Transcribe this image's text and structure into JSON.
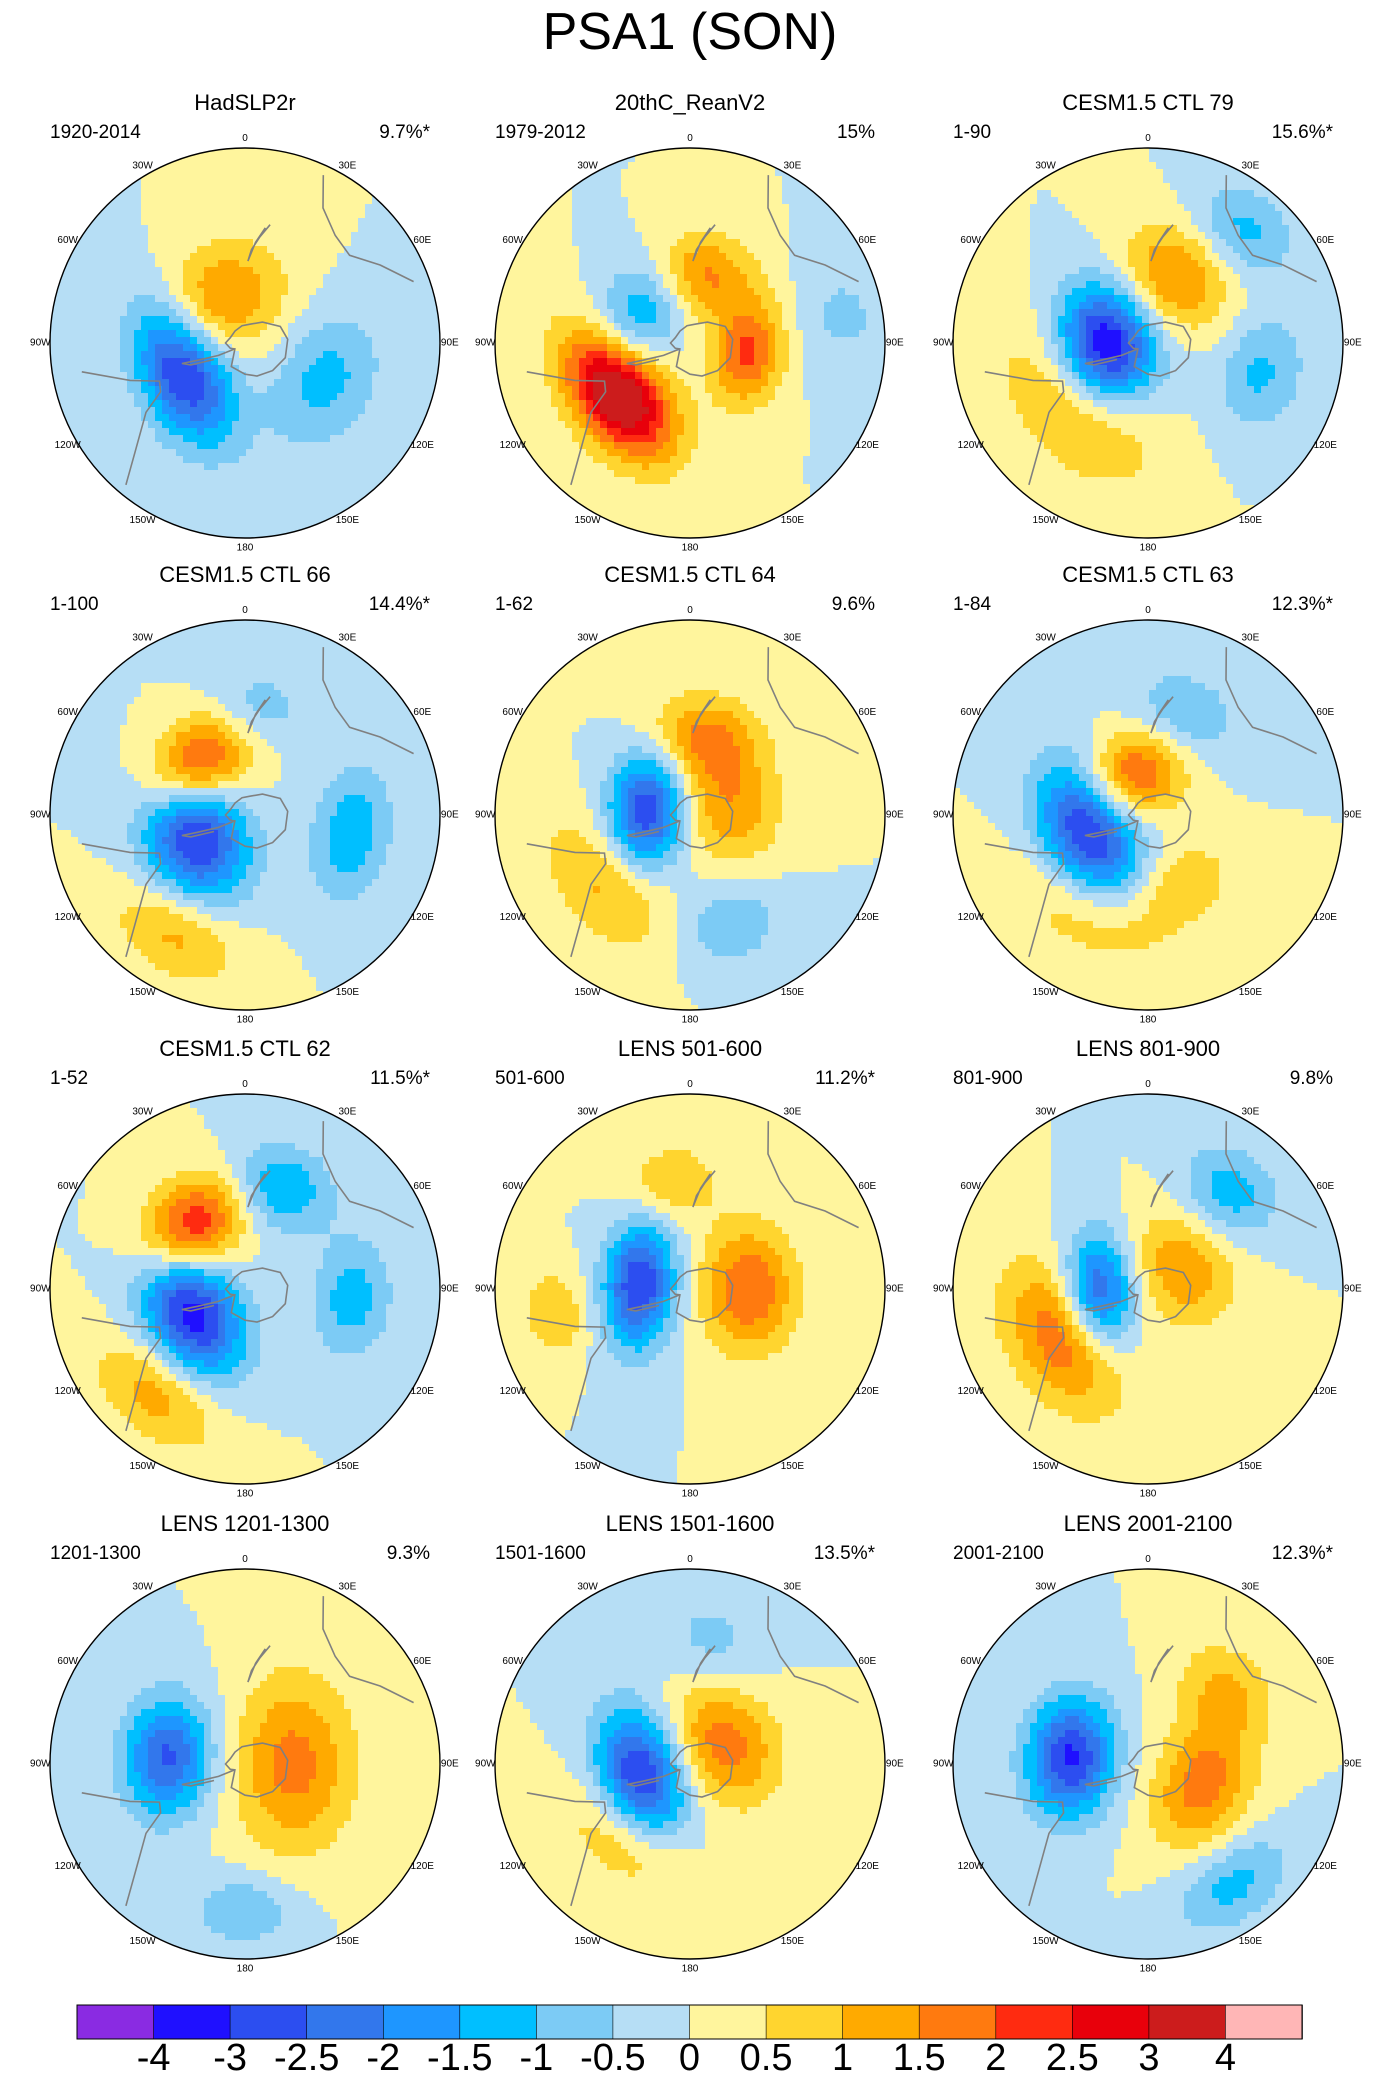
{
  "figure": {
    "title": "PSA1 (SON)"
  },
  "chart_data": {
    "type": "heatmap",
    "projection": "south-polar-stereographic",
    "title": "PSA1 (SON)",
    "longitude_labels": [
      "0",
      "30E",
      "60E",
      "90E",
      "120E",
      "150E",
      "180",
      "150W",
      "120W",
      "90W",
      "60W",
      "30W"
    ],
    "panels": [
      {
        "title": "HadSLP2r",
        "period": "1920-2014",
        "variance": "9.7%*",
        "centers": [
          {
            "lon": -115,
            "r": 0.35,
            "v": -3.2,
            "a": 0.38,
            "b": 0.22
          },
          {
            "lon": -30,
            "r": 0.25,
            "v": 1.6,
            "a": 0.34,
            "b": 0.28
          },
          {
            "lon": 115,
            "r": 0.45,
            "v": -1.2,
            "a": 0.36,
            "b": 0.26
          }
        ]
      },
      {
        "title": "20thC_ReanV2",
        "period": "1979-2012",
        "variance": "15%",
        "centers": [
          {
            "lon": -125,
            "r": 0.45,
            "v": 4.0,
            "a": 0.36,
            "b": 0.22
          },
          {
            "lon": -60,
            "r": 0.3,
            "v": -1.6,
            "a": 0.3,
            "b": 0.22
          },
          {
            "lon": 10,
            "r": 0.35,
            "v": 1.7,
            "a": 0.26,
            "b": 0.22
          },
          {
            "lon": 100,
            "r": 0.3,
            "v": 2.1,
            "a": 0.26,
            "b": 0.18
          },
          {
            "lon": 80,
            "r": 0.8,
            "v": -0.6,
            "a": 0.3,
            "b": 0.25
          }
        ]
      },
      {
        "title": "CESM1.5 CTL 79",
        "period": "1-90",
        "variance": "15.6%*",
        "centers": [
          {
            "lon": -95,
            "r": 0.22,
            "v": -4.0,
            "a": 0.32,
            "b": 0.26
          },
          {
            "lon": -130,
            "r": 0.45,
            "v": 1.6,
            "a": 0.45,
            "b": 0.3
          },
          {
            "lon": 20,
            "r": 0.35,
            "v": 1.7,
            "a": 0.3,
            "b": 0.28
          },
          {
            "lon": 40,
            "r": 0.75,
            "v": -1.2,
            "a": 0.28,
            "b": 0.22
          },
          {
            "lon": 105,
            "r": 0.6,
            "v": -1.1,
            "a": 0.3,
            "b": 0.22
          }
        ]
      },
      {
        "title": "CESM1.5 CTL 66",
        "period": "1-100",
        "variance": "14.4%*",
        "centers": [
          {
            "lon": -110,
            "r": 0.28,
            "v": -3.3,
            "a": 0.34,
            "b": 0.26
          },
          {
            "lon": -45,
            "r": 0.35,
            "v": 2.7,
            "a": 0.3,
            "b": 0.22
          },
          {
            "lon": 100,
            "r": 0.55,
            "v": -1.4,
            "a": 0.34,
            "b": 0.2
          },
          {
            "lon": -150,
            "r": 0.7,
            "v": 1.2,
            "a": 0.34,
            "b": 0.22
          },
          {
            "lon": 5,
            "r": 0.55,
            "v": -0.9,
            "a": 0.26,
            "b": 0.2
          }
        ]
      },
      {
        "title": "CESM1.5 CTL 64",
        "period": "1-62",
        "variance": "9.6%",
        "centers": [
          {
            "lon": -85,
            "r": 0.22,
            "v": -3.0,
            "a": 0.3,
            "b": 0.2
          },
          {
            "lon": 10,
            "r": 0.4,
            "v": 1.6,
            "a": 0.28,
            "b": 0.22
          },
          {
            "lon": 80,
            "r": 0.2,
            "v": 1.4,
            "a": 0.3,
            "b": 0.26
          },
          {
            "lon": -130,
            "r": 0.55,
            "v": 1.2,
            "a": 0.4,
            "b": 0.24
          },
          {
            "lon": 160,
            "r": 0.6,
            "v": -0.9,
            "a": 0.28,
            "b": 0.22
          }
        ]
      },
      {
        "title": "CESM1.5 CTL 63",
        "period": "1-84",
        "variance": "12.3%*",
        "centers": [
          {
            "lon": -110,
            "r": 0.32,
            "v": -3.4,
            "a": 0.38,
            "b": 0.24
          },
          {
            "lon": -20,
            "r": 0.22,
            "v": 2.2,
            "a": 0.26,
            "b": 0.22
          },
          {
            "lon": -150,
            "r": 0.55,
            "v": 1.3,
            "a": 0.4,
            "b": 0.26
          },
          {
            "lon": 20,
            "r": 0.55,
            "v": -1.0,
            "a": 0.28,
            "b": 0.22
          },
          {
            "lon": 150,
            "r": 0.4,
            "v": 0.9,
            "a": 0.24,
            "b": 0.2
          }
        ]
      },
      {
        "title": "CESM1.5 CTL 62",
        "period": "1-52",
        "variance": "11.5%*",
        "centers": [
          {
            "lon": -115,
            "r": 0.3,
            "v": -3.3,
            "a": 0.34,
            "b": 0.24
          },
          {
            "lon": -40,
            "r": 0.42,
            "v": 2.6,
            "a": 0.28,
            "b": 0.22
          },
          {
            "lon": 20,
            "r": 0.55,
            "v": -1.5,
            "a": 0.26,
            "b": 0.22
          },
          {
            "lon": 95,
            "r": 0.55,
            "v": -1.3,
            "a": 0.3,
            "b": 0.2
          },
          {
            "lon": -140,
            "r": 0.7,
            "v": 1.3,
            "a": 0.36,
            "b": 0.22
          }
        ]
      },
      {
        "title": "LENS 501-600",
        "period": "501-600",
        "variance": "11.2%*",
        "centers": [
          {
            "lon": -85,
            "r": 0.26,
            "v": -3.0,
            "a": 0.32,
            "b": 0.18
          },
          {
            "lon": 90,
            "r": 0.3,
            "v": 2.0,
            "a": 0.32,
            "b": 0.24
          },
          {
            "lon": -10,
            "r": 0.55,
            "v": 1.0,
            "a": 0.24,
            "b": 0.2
          },
          {
            "lon": -100,
            "r": 0.7,
            "v": 1.0,
            "a": 0.22,
            "b": 0.16
          }
        ]
      },
      {
        "title": "LENS 801-900",
        "period": "801-900",
        "variance": "9.8%",
        "centers": [
          {
            "lon": -95,
            "r": 0.25,
            "v": -2.8,
            "a": 0.3,
            "b": 0.18
          },
          {
            "lon": -120,
            "r": 0.5,
            "v": 2.0,
            "a": 0.4,
            "b": 0.26
          },
          {
            "lon": 40,
            "r": 0.65,
            "v": -1.3,
            "a": 0.26,
            "b": 0.22
          },
          {
            "lon": 60,
            "r": 0.2,
            "v": 1.4,
            "a": 0.3,
            "b": 0.26
          }
        ]
      },
      {
        "title": "LENS 1201-1300",
        "period": "1201-1300",
        "variance": "9.3%",
        "centers": [
          {
            "lon": -85,
            "r": 0.4,
            "v": -2.6,
            "a": 0.3,
            "b": 0.22
          },
          {
            "lon": 90,
            "r": 0.25,
            "v": 1.7,
            "a": 0.45,
            "b": 0.3
          },
          {
            "lon": 180,
            "r": 0.75,
            "v": -1.0,
            "a": 0.26,
            "b": 0.18
          }
        ]
      },
      {
        "title": "LENS 1501-1600",
        "period": "1501-1600",
        "variance": "13.5%*",
        "centers": [
          {
            "lon": -105,
            "r": 0.26,
            "v": -3.2,
            "a": 0.34,
            "b": 0.22
          },
          {
            "lon": 60,
            "r": 0.2,
            "v": 1.8,
            "a": 0.32,
            "b": 0.26
          },
          {
            "lon": -140,
            "r": 0.5,
            "v": 1.2,
            "a": 0.36,
            "b": 0.22
          },
          {
            "lon": 10,
            "r": 0.65,
            "v": -0.7,
            "a": 0.26,
            "b": 0.22
          }
        ]
      },
      {
        "title": "LENS 2001-2100",
        "period": "2001-2100",
        "variance": "12.3%*",
        "centers": [
          {
            "lon": -85,
            "r": 0.4,
            "v": -3.1,
            "a": 0.3,
            "b": 0.22
          },
          {
            "lon": 110,
            "r": 0.3,
            "v": 1.8,
            "a": 0.34,
            "b": 0.24
          },
          {
            "lon": 145,
            "r": 0.75,
            "v": -1.2,
            "a": 0.32,
            "b": 0.2
          },
          {
            "lon": 45,
            "r": 0.55,
            "v": 1.0,
            "a": 0.26,
            "b": 0.22
          }
        ]
      }
    ],
    "colorbar": {
      "levels": [
        -4,
        -3,
        -2.5,
        -2,
        -1.5,
        -1,
        -0.5,
        0,
        0.5,
        1,
        1.5,
        2,
        2.5,
        3,
        4
      ],
      "labels": [
        "-4",
        "-3",
        "-2.5",
        "-2",
        "-1.5",
        "-1",
        "-0.5",
        "0",
        "0.5",
        "1",
        "1.5",
        "2",
        "2.5",
        "3",
        "4"
      ],
      "colors": [
        "#8a2be2",
        "#1f10ff",
        "#2c4ef0",
        "#3277ec",
        "#1e96ff",
        "#00bfff",
        "#7ccbf5",
        "#b6def5",
        "#fff59d",
        "#ffd52f",
        "#ffaa00",
        "#ff7a0f",
        "#ff2b10",
        "#e8000b",
        "#cc1c1c",
        "#ffb6b6"
      ]
    }
  }
}
